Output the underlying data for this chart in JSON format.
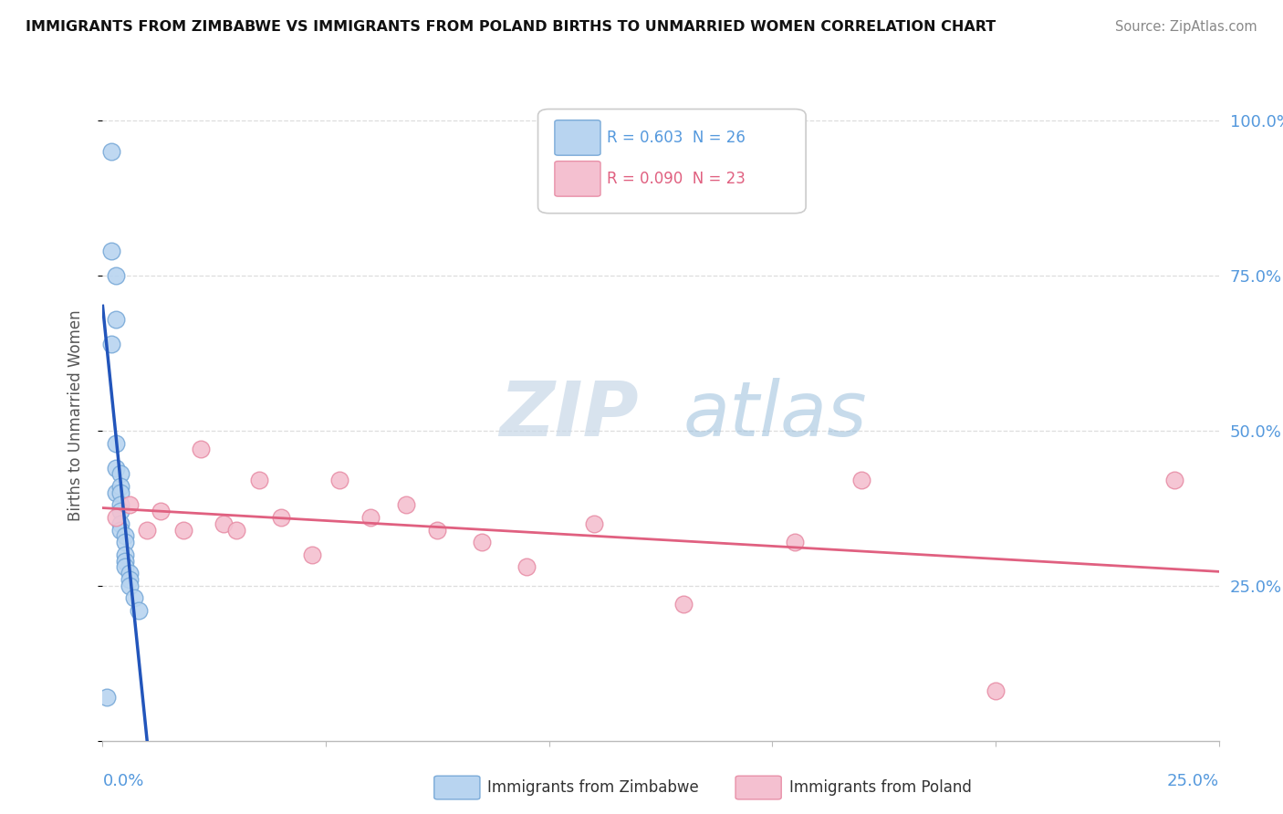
{
  "title": "IMMIGRANTS FROM ZIMBABWE VS IMMIGRANTS FROM POLAND BIRTHS TO UNMARRIED WOMEN CORRELATION CHART",
  "source": "Source: ZipAtlas.com",
  "ylabel": "Births to Unmarried Women",
  "ytick_vals": [
    0.0,
    0.25,
    0.5,
    0.75,
    1.0
  ],
  "ytick_labels": [
    "",
    "25.0%",
    "50.0%",
    "75.0%",
    "100.0%"
  ],
  "xlim": [
    0.0,
    0.25
  ],
  "ylim": [
    0.0,
    1.05
  ],
  "legend_r1": "R = 0.603",
  "legend_n1": "N = 26",
  "legend_r2": "R = 0.090",
  "legend_n2": "N = 23",
  "series1_color": "#b8d4f0",
  "series1_edge": "#7aaad8",
  "series1_label": "Immigrants from Zimbabwe",
  "series2_color": "#f4c0d0",
  "series2_edge": "#e890a8",
  "series2_label": "Immigrants from Poland",
  "trend1_color": "#2255bb",
  "trend2_color": "#e06080",
  "watermark_zip": "ZIP",
  "watermark_atlas": "atlas",
  "background_color": "#ffffff",
  "grid_color": "#dddddd",
  "tick_color": "#5599dd",
  "zimbabwe_x": [
    0.001,
    0.002,
    0.002,
    0.002,
    0.003,
    0.003,
    0.003,
    0.003,
    0.003,
    0.004,
    0.004,
    0.004,
    0.004,
    0.004,
    0.004,
    0.004,
    0.005,
    0.005,
    0.005,
    0.005,
    0.005,
    0.006,
    0.006,
    0.006,
    0.007,
    0.008
  ],
  "zimbabwe_y": [
    0.07,
    0.95,
    0.79,
    0.64,
    0.75,
    0.68,
    0.48,
    0.44,
    0.4,
    0.43,
    0.41,
    0.4,
    0.38,
    0.37,
    0.35,
    0.34,
    0.33,
    0.32,
    0.3,
    0.29,
    0.28,
    0.27,
    0.26,
    0.25,
    0.23,
    0.21
  ],
  "poland_x": [
    0.003,
    0.006,
    0.01,
    0.013,
    0.018,
    0.022,
    0.027,
    0.03,
    0.035,
    0.04,
    0.047,
    0.053,
    0.06,
    0.068,
    0.075,
    0.085,
    0.095,
    0.11,
    0.13,
    0.155,
    0.17,
    0.2,
    0.24
  ],
  "poland_y": [
    0.36,
    0.38,
    0.34,
    0.37,
    0.34,
    0.47,
    0.35,
    0.34,
    0.42,
    0.36,
    0.3,
    0.42,
    0.36,
    0.38,
    0.34,
    0.32,
    0.28,
    0.35,
    0.22,
    0.32,
    0.42,
    0.08,
    0.42
  ]
}
